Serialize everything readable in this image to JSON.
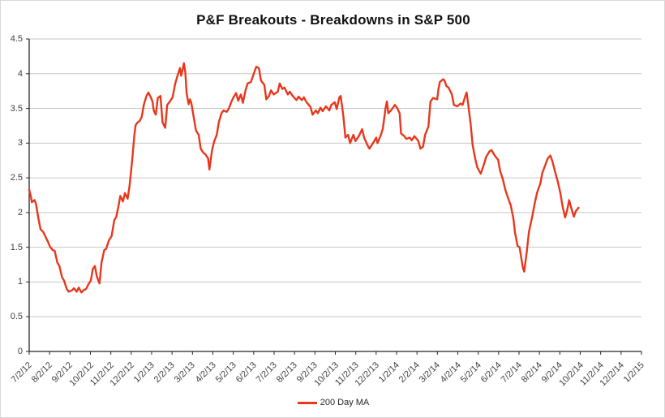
{
  "title": "P&F Breakouts - Breakdowns in S&P 500",
  "legend": {
    "label": "200 Day MA"
  },
  "colors": {
    "line": "#e8371c",
    "gridline": "#c6c6c6",
    "axis": "#262626",
    "label_text": "#3f3f3f",
    "title_text": "#111111",
    "background": "#ffffff"
  },
  "chart_data": {
    "type": "line",
    "title": "P&F Breakouts - Breakdowns in S&P 500",
    "xlabel": "",
    "ylabel": "",
    "ylim": [
      0,
      4.5
    ],
    "y_ticks": [
      "0",
      "0.5",
      "1",
      "1.5",
      "2",
      "2.5",
      "3",
      "3.5",
      "4",
      "4.5"
    ],
    "x_range": [
      "2012-07-02",
      "2015-01-02"
    ],
    "x_ticks": [
      "7/2/12",
      "8/2/12",
      "9/2/12",
      "10/2/12",
      "11/2/12",
      "12/2/12",
      "1/2/13",
      "2/2/13",
      "3/2/13",
      "4/2/13",
      "5/2/13",
      "6/2/13",
      "7/2/13",
      "8/2/13",
      "9/2/13",
      "10/2/13",
      "11/2/13",
      "12/2/13",
      "1/2/14",
      "2/2/14",
      "3/2/14",
      "4/2/14",
      "5/2/14",
      "6/2/14",
      "7/2/14",
      "8/2/14",
      "9/2/14",
      "10/2/14",
      "11/2/14",
      "12/2/14",
      "1/2/15"
    ],
    "grid": true,
    "legend_position": "bottom-center",
    "series": [
      {
        "name": "200 Day MA",
        "points": [
          [
            "2012-07-02",
            2.33
          ],
          [
            "2012-07-04",
            2.25
          ],
          [
            "2012-07-06",
            2.15
          ],
          [
            "2012-07-10",
            2.18
          ],
          [
            "2012-07-12",
            2.13
          ],
          [
            "2012-07-16",
            1.9
          ],
          [
            "2012-07-19",
            1.76
          ],
          [
            "2012-07-23",
            1.72
          ],
          [
            "2012-07-26",
            1.66
          ],
          [
            "2012-07-30",
            1.58
          ],
          [
            "2012-08-02",
            1.51
          ],
          [
            "2012-08-06",
            1.46
          ],
          [
            "2012-08-09",
            1.45
          ],
          [
            "2012-08-13",
            1.28
          ],
          [
            "2012-08-16",
            1.23
          ],
          [
            "2012-08-20",
            1.07
          ],
          [
            "2012-08-23",
            1.02
          ],
          [
            "2012-08-27",
            0.9
          ],
          [
            "2012-08-30",
            0.86
          ],
          [
            "2012-09-04",
            0.88
          ],
          [
            "2012-09-07",
            0.91
          ],
          [
            "2012-09-11",
            0.86
          ],
          [
            "2012-09-14",
            0.92
          ],
          [
            "2012-09-18",
            0.85
          ],
          [
            "2012-09-21",
            0.88
          ],
          [
            "2012-09-25",
            0.9
          ],
          [
            "2012-09-28",
            0.96
          ],
          [
            "2012-10-02",
            1.02
          ],
          [
            "2012-10-05",
            1.19
          ],
          [
            "2012-10-08",
            1.23
          ],
          [
            "2012-10-11",
            1.08
          ],
          [
            "2012-10-15",
            0.98
          ],
          [
            "2012-10-18",
            1.28
          ],
          [
            "2012-10-22",
            1.46
          ],
          [
            "2012-10-25",
            1.48
          ],
          [
            "2012-10-29",
            1.6
          ],
          [
            "2012-11-02",
            1.66
          ],
          [
            "2012-11-06",
            1.89
          ],
          [
            "2012-11-09",
            1.94
          ],
          [
            "2012-11-13",
            2.13
          ],
          [
            "2012-11-15",
            2.24
          ],
          [
            "2012-11-19",
            2.16
          ],
          [
            "2012-11-22",
            2.28
          ],
          [
            "2012-11-26",
            2.2
          ],
          [
            "2012-11-29",
            2.4
          ],
          [
            "2012-12-03",
            2.78
          ],
          [
            "2012-12-06",
            3.12
          ],
          [
            "2012-12-08",
            3.26
          ],
          [
            "2012-12-11",
            3.3
          ],
          [
            "2012-12-14",
            3.32
          ],
          [
            "2012-12-17",
            3.38
          ],
          [
            "2012-12-20",
            3.55
          ],
          [
            "2012-12-24",
            3.68
          ],
          [
            "2012-12-27",
            3.73
          ],
          [
            "2012-12-31",
            3.65
          ],
          [
            "2013-01-02",
            3.6
          ],
          [
            "2013-01-04",
            3.47
          ],
          [
            "2013-01-07",
            3.41
          ],
          [
            "2013-01-10",
            3.65
          ],
          [
            "2013-01-14",
            3.68
          ],
          [
            "2013-01-17",
            3.3
          ],
          [
            "2013-01-21",
            3.22
          ],
          [
            "2013-01-24",
            3.55
          ],
          [
            "2013-01-28",
            3.6
          ],
          [
            "2013-02-01",
            3.66
          ],
          [
            "2013-02-05",
            3.86
          ],
          [
            "2013-02-08",
            3.96
          ],
          [
            "2013-02-12",
            4.08
          ],
          [
            "2013-02-14",
            3.97
          ],
          [
            "2013-02-18",
            4.15
          ],
          [
            "2013-02-20",
            4.02
          ],
          [
            "2013-02-22",
            3.72
          ],
          [
            "2013-02-25",
            3.56
          ],
          [
            "2013-02-27",
            3.63
          ],
          [
            "2013-03-01",
            3.58
          ],
          [
            "2013-03-05",
            3.35
          ],
          [
            "2013-03-08",
            3.18
          ],
          [
            "2013-03-12",
            3.12
          ],
          [
            "2013-03-15",
            2.92
          ],
          [
            "2013-03-19",
            2.86
          ],
          [
            "2013-03-22",
            2.84
          ],
          [
            "2013-03-26",
            2.78
          ],
          [
            "2013-03-28",
            2.62
          ],
          [
            "2013-04-01",
            2.9
          ],
          [
            "2013-04-04",
            3.02
          ],
          [
            "2013-04-08",
            3.12
          ],
          [
            "2013-04-11",
            3.3
          ],
          [
            "2013-04-15",
            3.43
          ],
          [
            "2013-04-18",
            3.47
          ],
          [
            "2013-04-23",
            3.45
          ],
          [
            "2013-04-26",
            3.5
          ],
          [
            "2013-04-30",
            3.6
          ],
          [
            "2013-05-03",
            3.66
          ],
          [
            "2013-05-07",
            3.72
          ],
          [
            "2013-05-10",
            3.61
          ],
          [
            "2013-05-14",
            3.7
          ],
          [
            "2013-05-17",
            3.58
          ],
          [
            "2013-05-21",
            3.76
          ],
          [
            "2013-05-24",
            3.86
          ],
          [
            "2013-05-29",
            3.88
          ],
          [
            "2013-06-03",
            4.02
          ],
          [
            "2013-06-06",
            4.1
          ],
          [
            "2013-06-10",
            4.08
          ],
          [
            "2013-06-13",
            3.9
          ],
          [
            "2013-06-18",
            3.84
          ],
          [
            "2013-06-21",
            3.63
          ],
          [
            "2013-06-25",
            3.68
          ],
          [
            "2013-06-28",
            3.76
          ],
          [
            "2013-07-02",
            3.7
          ],
          [
            "2013-07-08",
            3.74
          ],
          [
            "2013-07-11",
            3.86
          ],
          [
            "2013-07-15",
            3.78
          ],
          [
            "2013-07-18",
            3.8
          ],
          [
            "2013-07-23",
            3.7
          ],
          [
            "2013-07-26",
            3.74
          ],
          [
            "2013-07-31",
            3.67
          ],
          [
            "2013-08-05",
            3.62
          ],
          [
            "2013-08-08",
            3.67
          ],
          [
            "2013-08-13",
            3.62
          ],
          [
            "2013-08-16",
            3.66
          ],
          [
            "2013-08-20",
            3.59
          ],
          [
            "2013-08-26",
            3.52
          ],
          [
            "2013-08-29",
            3.41
          ],
          [
            "2013-09-03",
            3.47
          ],
          [
            "2013-09-06",
            3.43
          ],
          [
            "2013-09-10",
            3.51
          ],
          [
            "2013-09-13",
            3.46
          ],
          [
            "2013-09-18",
            3.53
          ],
          [
            "2013-09-23",
            3.47
          ],
          [
            "2013-09-26",
            3.55
          ],
          [
            "2013-10-01",
            3.59
          ],
          [
            "2013-10-04",
            3.49
          ],
          [
            "2013-10-08",
            3.66
          ],
          [
            "2013-10-10",
            3.68
          ],
          [
            "2013-10-14",
            3.39
          ],
          [
            "2013-10-17",
            3.08
          ],
          [
            "2013-10-21",
            3.12
          ],
          [
            "2013-10-24",
            3.0
          ],
          [
            "2013-10-29",
            3.12
          ],
          [
            "2013-11-01",
            3.03
          ],
          [
            "2013-11-06",
            3.1
          ],
          [
            "2013-11-11",
            3.2
          ],
          [
            "2013-11-14",
            3.08
          ],
          [
            "2013-11-19",
            2.97
          ],
          [
            "2013-11-22",
            2.92
          ],
          [
            "2013-11-26",
            2.98
          ],
          [
            "2013-12-02",
            3.08
          ],
          [
            "2013-12-04",
            3.0
          ],
          [
            "2013-12-09",
            3.12
          ],
          [
            "2013-12-12",
            3.21
          ],
          [
            "2013-12-16",
            3.51
          ],
          [
            "2013-12-18",
            3.6
          ],
          [
            "2013-12-20",
            3.43
          ],
          [
            "2013-12-24",
            3.47
          ],
          [
            "2013-12-30",
            3.55
          ],
          [
            "2014-01-02",
            3.51
          ],
          [
            "2014-01-06",
            3.43
          ],
          [
            "2014-01-08",
            3.14
          ],
          [
            "2014-01-13",
            3.1
          ],
          [
            "2014-01-16",
            3.06
          ],
          [
            "2014-01-21",
            3.08
          ],
          [
            "2014-01-24",
            3.04
          ],
          [
            "2014-01-28",
            3.1
          ],
          [
            "2014-02-03",
            3.03
          ],
          [
            "2014-02-06",
            2.92
          ],
          [
            "2014-02-10",
            2.95
          ],
          [
            "2014-02-13",
            3.12
          ],
          [
            "2014-02-18",
            3.24
          ],
          [
            "2014-02-21",
            3.6
          ],
          [
            "2014-02-25",
            3.65
          ],
          [
            "2014-03-03",
            3.63
          ],
          [
            "2014-03-05",
            3.78
          ],
          [
            "2014-03-07",
            3.88
          ],
          [
            "2014-03-12",
            3.92
          ],
          [
            "2014-03-14",
            3.9
          ],
          [
            "2014-03-17",
            3.82
          ],
          [
            "2014-03-20",
            3.8
          ],
          [
            "2014-03-25",
            3.7
          ],
          [
            "2014-03-28",
            3.55
          ],
          [
            "2014-04-02",
            3.53
          ],
          [
            "2014-04-07",
            3.57
          ],
          [
            "2014-04-10",
            3.55
          ],
          [
            "2014-04-14",
            3.68
          ],
          [
            "2014-04-16",
            3.73
          ],
          [
            "2014-04-18",
            3.58
          ],
          [
            "2014-04-22",
            3.27
          ],
          [
            "2014-04-25",
            2.97
          ],
          [
            "2014-04-29",
            2.77
          ],
          [
            "2014-05-02",
            2.65
          ],
          [
            "2014-05-07",
            2.56
          ],
          [
            "2014-05-12",
            2.7
          ],
          [
            "2014-05-15",
            2.8
          ],
          [
            "2014-05-20",
            2.88
          ],
          [
            "2014-05-23",
            2.9
          ],
          [
            "2014-05-28",
            2.82
          ],
          [
            "2014-06-02",
            2.76
          ],
          [
            "2014-06-05",
            2.6
          ],
          [
            "2014-06-09",
            2.48
          ],
          [
            "2014-06-13",
            2.32
          ],
          [
            "2014-06-18",
            2.18
          ],
          [
            "2014-06-21",
            2.1
          ],
          [
            "2014-06-25",
            1.9
          ],
          [
            "2014-06-27",
            1.72
          ],
          [
            "2014-07-01",
            1.52
          ],
          [
            "2014-07-04",
            1.5
          ],
          [
            "2014-07-09",
            1.2
          ],
          [
            "2014-07-11",
            1.15
          ],
          [
            "2014-07-15",
            1.45
          ],
          [
            "2014-07-18",
            1.72
          ],
          [
            "2014-07-23",
            1.95
          ],
          [
            "2014-07-26",
            2.1
          ],
          [
            "2014-07-30",
            2.28
          ],
          [
            "2014-08-04",
            2.42
          ],
          [
            "2014-08-07",
            2.57
          ],
          [
            "2014-08-12",
            2.7
          ],
          [
            "2014-08-15",
            2.78
          ],
          [
            "2014-08-19",
            2.82
          ],
          [
            "2014-08-22",
            2.74
          ],
          [
            "2014-08-27",
            2.55
          ],
          [
            "2014-08-30",
            2.45
          ],
          [
            "2014-09-03",
            2.28
          ],
          [
            "2014-09-06",
            2.1
          ],
          [
            "2014-09-10",
            1.93
          ],
          [
            "2014-09-13",
            2.03
          ],
          [
            "2014-09-16",
            2.18
          ],
          [
            "2014-09-19",
            2.07
          ],
          [
            "2014-09-23",
            1.94
          ],
          [
            "2014-09-26",
            2.02
          ],
          [
            "2014-09-30",
            2.07
          ]
        ]
      }
    ]
  }
}
